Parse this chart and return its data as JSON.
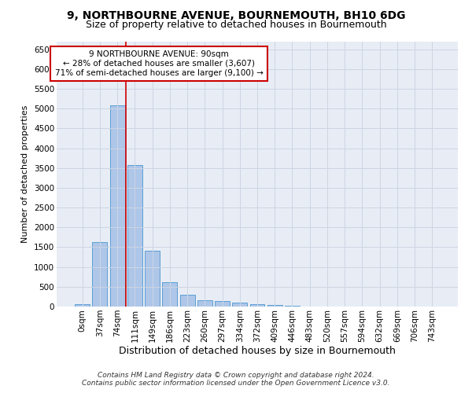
{
  "title1": "9, NORTHBOURNE AVENUE, BOURNEMOUTH, BH10 6DG",
  "title2": "Size of property relative to detached houses in Bournemouth",
  "xlabel": "Distribution of detached houses by size in Bournemouth",
  "ylabel": "Number of detached properties",
  "footnote1": "Contains HM Land Registry data © Crown copyright and database right 2024.",
  "footnote2": "Contains public sector information licensed under the Open Government Licence v3.0.",
  "bar_labels": [
    "0sqm",
    "37sqm",
    "74sqm",
    "111sqm",
    "149sqm",
    "186sqm",
    "223sqm",
    "260sqm",
    "297sqm",
    "334sqm",
    "372sqm",
    "409sqm",
    "446sqm",
    "483sqm",
    "520sqm",
    "557sqm",
    "594sqm",
    "632sqm",
    "669sqm",
    "706sqm",
    "743sqm"
  ],
  "bar_values": [
    60,
    1620,
    5080,
    3580,
    1400,
    610,
    300,
    155,
    130,
    95,
    60,
    30,
    15,
    8,
    5,
    3,
    2,
    1,
    1,
    0,
    0
  ],
  "bar_color": "#aec6e8",
  "bar_edge_color": "#5a9fd4",
  "property_line_label": "9 NORTHBOURNE AVENUE: 90sqm",
  "annotation_line1": "← 28% of detached houses are smaller (3,607)",
  "annotation_line2": "71% of semi-detached houses are larger (9,100) →",
  "annotation_box_color": "#ffffff",
  "annotation_box_edge": "#cc0000",
  "vline_color": "#cc0000",
  "vline_x": 2.5,
  "ylim": [
    0,
    6700
  ],
  "yticks": [
    0,
    500,
    1000,
    1500,
    2000,
    2500,
    3000,
    3500,
    4000,
    4500,
    5000,
    5500,
    6000,
    6500
  ],
  "grid_color": "#cdd5e3",
  "bg_color": "#e8edf5",
  "title1_fontsize": 10,
  "title2_fontsize": 9,
  "xlabel_fontsize": 9,
  "ylabel_fontsize": 8,
  "tick_fontsize": 7.5,
  "annot_fontsize": 7.5,
  "footnote_fontsize": 6.5
}
